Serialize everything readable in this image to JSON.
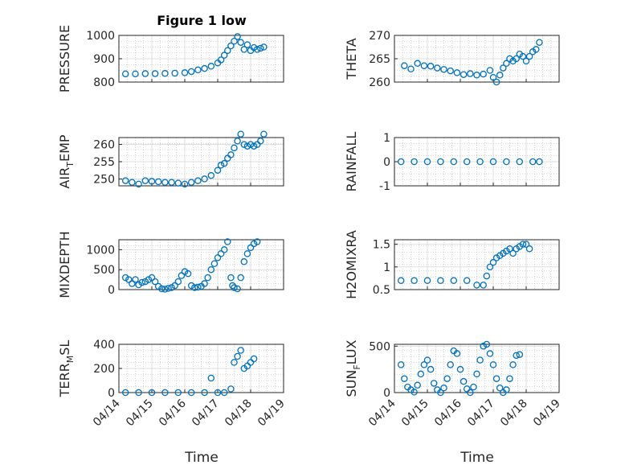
{
  "figure": {
    "title": "Figure 1 low",
    "marker_color": "#0072BD",
    "x_ticks": [
      "04/14",
      "04/15",
      "04/16",
      "04/17",
      "04/18",
      "04/19"
    ],
    "xlabel": "Time"
  },
  "chart_data": [
    {
      "type": "scatter",
      "name_label": "PRESSURE",
      "ylim": [
        800,
        1000
      ],
      "yticks": [
        800,
        900,
        1000
      ],
      "grid": true,
      "x_range_days": [
        0,
        5
      ],
      "points": [
        [
          0.2,
          835
        ],
        [
          0.5,
          835
        ],
        [
          0.8,
          836
        ],
        [
          1.1,
          836
        ],
        [
          1.4,
          837
        ],
        [
          1.7,
          838
        ],
        [
          2.0,
          840
        ],
        [
          2.2,
          845
        ],
        [
          2.4,
          852
        ],
        [
          2.6,
          858
        ],
        [
          2.8,
          868
        ],
        [
          3.0,
          882
        ],
        [
          3.1,
          895
        ],
        [
          3.2,
          915
        ],
        [
          3.3,
          935
        ],
        [
          3.4,
          955
        ],
        [
          3.5,
          975
        ],
        [
          3.6,
          995
        ],
        [
          3.7,
          970
        ],
        [
          3.8,
          940
        ],
        [
          3.9,
          960
        ],
        [
          4.0,
          935
        ],
        [
          4.1,
          948
        ],
        [
          4.2,
          940
        ],
        [
          4.3,
          945
        ],
        [
          4.4,
          950
        ]
      ]
    },
    {
      "type": "scatter",
      "name_label": "THETA",
      "ylim": [
        260,
        270
      ],
      "yticks": [
        260,
        265,
        270
      ],
      "grid": true,
      "points": [
        [
          0.3,
          263.5
        ],
        [
          0.5,
          262.8
        ],
        [
          0.7,
          264
        ],
        [
          0.9,
          263.5
        ],
        [
          1.1,
          263.4
        ],
        [
          1.3,
          263
        ],
        [
          1.5,
          262.7
        ],
        [
          1.7,
          262.4
        ],
        [
          1.9,
          262
        ],
        [
          2.1,
          261.6
        ],
        [
          2.3,
          261.8
        ],
        [
          2.5,
          261.5
        ],
        [
          2.7,
          261.7
        ],
        [
          2.9,
          262.5
        ],
        [
          3.0,
          261
        ],
        [
          3.1,
          260
        ],
        [
          3.2,
          261.5
        ],
        [
          3.3,
          263
        ],
        [
          3.4,
          264
        ],
        [
          3.5,
          265
        ],
        [
          3.6,
          264.5
        ],
        [
          3.7,
          265
        ],
        [
          3.8,
          266
        ],
        [
          3.9,
          265.5
        ],
        [
          4.0,
          264.5
        ],
        [
          4.1,
          265.5
        ],
        [
          4.2,
          266.5
        ],
        [
          4.3,
          267
        ],
        [
          4.4,
          268.5
        ]
      ]
    },
    {
      "type": "scatter",
      "name_label": "AIR_TEMP",
      "ylim": [
        248,
        262
      ],
      "yticks": [
        250,
        255,
        260
      ],
      "grid": true,
      "points": [
        [
          0.2,
          249.5
        ],
        [
          0.4,
          249
        ],
        [
          0.6,
          248.5
        ],
        [
          0.8,
          249.5
        ],
        [
          1.0,
          249.3
        ],
        [
          1.2,
          249.2
        ],
        [
          1.4,
          249
        ],
        [
          1.6,
          249
        ],
        [
          1.8,
          248.8
        ],
        [
          2.0,
          248.5
        ],
        [
          2.2,
          249
        ],
        [
          2.4,
          249.5
        ],
        [
          2.6,
          250
        ],
        [
          2.8,
          251
        ],
        [
          3.0,
          252.5
        ],
        [
          3.1,
          254
        ],
        [
          3.2,
          254.5
        ],
        [
          3.3,
          256
        ],
        [
          3.4,
          257
        ],
        [
          3.5,
          259
        ],
        [
          3.6,
          261
        ],
        [
          3.7,
          263
        ],
        [
          3.8,
          260
        ],
        [
          3.9,
          259.5
        ],
        [
          4.0,
          260
        ],
        [
          4.1,
          259.5
        ],
        [
          4.2,
          260
        ],
        [
          4.3,
          261
        ],
        [
          4.4,
          263
        ]
      ]
    },
    {
      "type": "scatter",
      "name_label": "RAINFALL",
      "ylim": [
        -1,
        1
      ],
      "yticks": [
        -1,
        0,
        1
      ],
      "grid": true,
      "points": [
        [
          0.2,
          0
        ],
        [
          0.6,
          0
        ],
        [
          1.0,
          0
        ],
        [
          1.4,
          0
        ],
        [
          1.8,
          0
        ],
        [
          2.2,
          0
        ],
        [
          2.6,
          0
        ],
        [
          3.0,
          0
        ],
        [
          3.4,
          0
        ],
        [
          3.8,
          0
        ],
        [
          4.2,
          0
        ],
        [
          4.4,
          0
        ]
      ]
    },
    {
      "type": "scatter",
      "name_label": "MIXDEPTH",
      "ylim": [
        0,
        1250
      ],
      "yticks": [
        0,
        500,
        1000
      ],
      "grid": true,
      "points": [
        [
          0.2,
          300
        ],
        [
          0.3,
          250
        ],
        [
          0.4,
          150
        ],
        [
          0.5,
          250
        ],
        [
          0.6,
          120
        ],
        [
          0.7,
          180
        ],
        [
          0.8,
          200
        ],
        [
          0.9,
          250
        ],
        [
          1.0,
          300
        ],
        [
          1.1,
          200
        ],
        [
          1.2,
          80
        ],
        [
          1.3,
          20
        ],
        [
          1.4,
          10
        ],
        [
          1.5,
          30
        ],
        [
          1.6,
          50
        ],
        [
          1.7,
          100
        ],
        [
          1.8,
          200
        ],
        [
          1.9,
          350
        ],
        [
          2.0,
          450
        ],
        [
          2.1,
          400
        ],
        [
          2.2,
          100
        ],
        [
          2.3,
          50
        ],
        [
          2.4,
          60
        ],
        [
          2.5,
          80
        ],
        [
          2.6,
          150
        ],
        [
          2.7,
          300
        ],
        [
          2.8,
          500
        ],
        [
          2.9,
          650
        ],
        [
          3.0,
          800
        ],
        [
          3.1,
          900
        ],
        [
          3.2,
          1000
        ],
        [
          3.3,
          1200
        ],
        [
          3.4,
          300
        ],
        [
          3.45,
          100
        ],
        [
          3.5,
          50
        ],
        [
          3.6,
          20
        ],
        [
          3.7,
          300
        ],
        [
          3.8,
          700
        ],
        [
          3.9,
          900
        ],
        [
          4.0,
          1050
        ],
        [
          4.1,
          1150
        ],
        [
          4.2,
          1200
        ]
      ]
    },
    {
      "type": "scatter",
      "name_label": "H2OMIXRA",
      "ylim": [
        0.5,
        1.6
      ],
      "yticks": [
        0.5,
        1,
        1.5
      ],
      "grid": true,
      "points": [
        [
          0.2,
          0.7
        ],
        [
          0.6,
          0.7
        ],
        [
          1.0,
          0.7
        ],
        [
          1.4,
          0.7
        ],
        [
          1.8,
          0.7
        ],
        [
          2.2,
          0.7
        ],
        [
          2.5,
          0.6
        ],
        [
          2.7,
          0.6
        ],
        [
          2.8,
          0.8
        ],
        [
          2.9,
          1.0
        ],
        [
          3.0,
          1.1
        ],
        [
          3.1,
          1.2
        ],
        [
          3.2,
          1.25
        ],
        [
          3.3,
          1.3
        ],
        [
          3.4,
          1.35
        ],
        [
          3.5,
          1.4
        ],
        [
          3.6,
          1.3
        ],
        [
          3.7,
          1.4
        ],
        [
          3.8,
          1.45
        ],
        [
          3.9,
          1.5
        ],
        [
          4.0,
          1.5
        ],
        [
          4.1,
          1.4
        ]
      ]
    },
    {
      "type": "scatter",
      "name_label": "TERR_MSL",
      "ylim": [
        0,
        400
      ],
      "yticks": [
        0,
        200,
        400
      ],
      "grid": true,
      "points": [
        [
          0.2,
          0
        ],
        [
          0.6,
          0
        ],
        [
          1.0,
          0
        ],
        [
          1.4,
          0
        ],
        [
          1.8,
          0
        ],
        [
          2.2,
          0
        ],
        [
          2.6,
          0
        ],
        [
          2.8,
          120
        ],
        [
          3.0,
          0
        ],
        [
          3.2,
          0
        ],
        [
          3.4,
          30
        ],
        [
          3.5,
          250
        ],
        [
          3.6,
          300
        ],
        [
          3.7,
          350
        ],
        [
          3.8,
          200
        ],
        [
          3.9,
          220
        ],
        [
          4.0,
          250
        ],
        [
          4.1,
          280
        ]
      ]
    },
    {
      "type": "scatter",
      "name_label": "SUN_FLUX",
      "ylim": [
        0,
        520
      ],
      "yticks": [
        0,
        500
      ],
      "grid": true,
      "points": [
        [
          0.2,
          300
        ],
        [
          0.3,
          150
        ],
        [
          0.4,
          60
        ],
        [
          0.5,
          30
        ],
        [
          0.6,
          5
        ],
        [
          0.7,
          80
        ],
        [
          0.8,
          200
        ],
        [
          0.9,
          300
        ],
        [
          1.0,
          350
        ],
        [
          1.1,
          250
        ],
        [
          1.2,
          100
        ],
        [
          1.3,
          30
        ],
        [
          1.4,
          0
        ],
        [
          1.5,
          50
        ],
        [
          1.6,
          150
        ],
        [
          1.7,
          300
        ],
        [
          1.8,
          450
        ],
        [
          1.9,
          420
        ],
        [
          2.0,
          250
        ],
        [
          2.1,
          120
        ],
        [
          2.2,
          40
        ],
        [
          2.3,
          0
        ],
        [
          2.4,
          60
        ],
        [
          2.5,
          200
        ],
        [
          2.6,
          350
        ],
        [
          2.7,
          500
        ],
        [
          2.8,
          520
        ],
        [
          2.9,
          420
        ],
        [
          3.0,
          300
        ],
        [
          3.1,
          150
        ],
        [
          3.2,
          50
        ],
        [
          3.3,
          0
        ],
        [
          3.4,
          30
        ],
        [
          3.5,
          150
        ],
        [
          3.6,
          300
        ],
        [
          3.7,
          400
        ],
        [
          3.8,
          410
        ]
      ]
    }
  ],
  "ylabels": {
    "p0_main": "PRESSURE",
    "p1_main": "THETA",
    "p2_main": "AIR",
    "p2_sub": "T",
    "p2_rest": "EMP",
    "p3_main": "RAINFALL",
    "p4_main": "MIXDEPTH",
    "p5_main": "H2OMIXRA",
    "p6_main": "TERR",
    "p6_sub": "M",
    "p6_rest": "SL",
    "p7_main": "SUN",
    "p7_sub": "F",
    "p7_rest": "LUX"
  }
}
